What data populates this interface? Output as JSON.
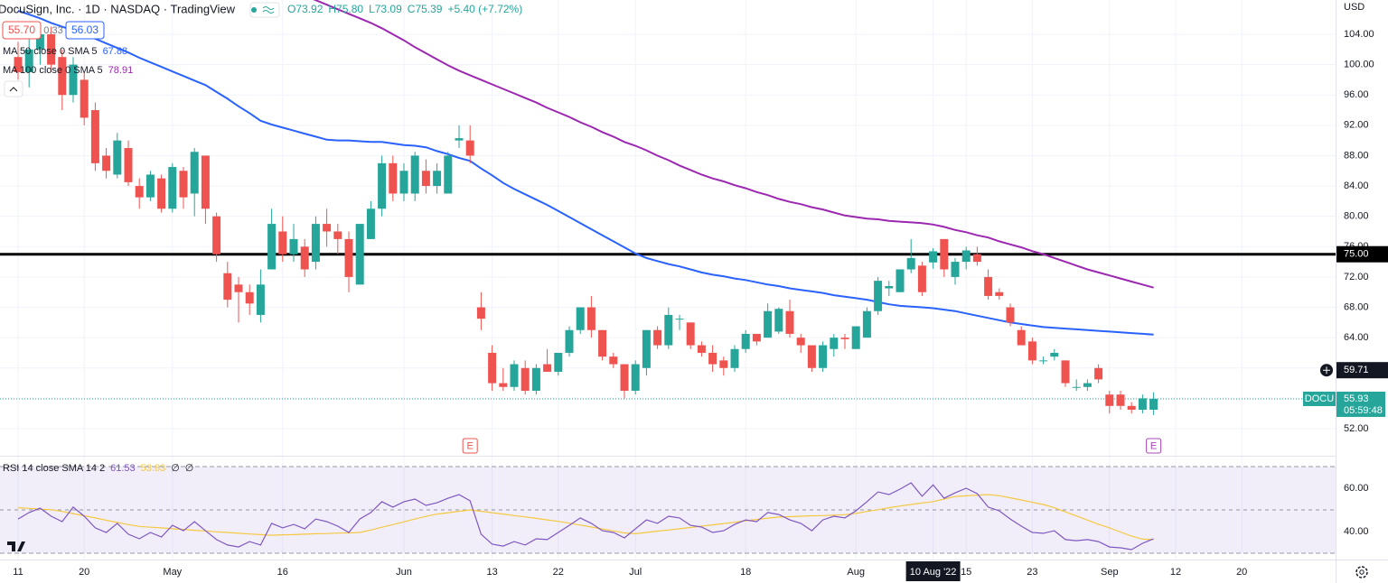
{
  "header": {
    "symbol": "DocuSign, Inc. · 1D · NASDAQ · TradingView",
    "ohlc": [
      "O73.92",
      "H75.80",
      "L73.09",
      "C75.39",
      "+5.40 (+7.72%)"
    ],
    "sell": "55.70",
    "spread": "0.33",
    "buy": "56.03"
  },
  "chart_data": {
    "type": "candlestick",
    "currency": "USD",
    "categories": [
      "11",
      null,
      null,
      null,
      null,
      null,
      "20",
      null,
      null,
      null,
      null,
      null,
      null,
      null,
      "May",
      null,
      null,
      null,
      null,
      null,
      null,
      null,
      null,
      null,
      "16",
      null,
      null,
      null,
      null,
      null,
      null,
      null,
      null,
      null,
      null,
      "Jun",
      null,
      null,
      null,
      null,
      null,
      null,
      null,
      "13",
      null,
      null,
      null,
      null,
      null,
      "22",
      null,
      null,
      null,
      null,
      null,
      null,
      "Jul",
      null,
      null,
      null,
      null,
      null,
      null,
      null,
      null,
      null,
      "18",
      null,
      null,
      null,
      null,
      null,
      null,
      null,
      null,
      null,
      "Aug",
      null,
      null,
      null,
      null,
      null,
      null,
      "10 Aug '22",
      null,
      null,
      "15",
      null,
      null,
      null,
      null,
      null,
      "23",
      null,
      null,
      null,
      null,
      null,
      null,
      "Sep",
      null,
      null,
      null,
      null,
      null,
      "12",
      null,
      null,
      null,
      null,
      null,
      "20"
    ],
    "open": [
      101,
      99,
      102,
      104,
      101,
      96,
      98,
      94,
      88,
      85.5,
      89,
      84,
      82.5,
      85,
      81,
      86,
      83,
      88,
      80,
      72.5,
      71,
      70,
      67,
      73,
      78,
      75,
      76,
      74,
      79,
      78,
      77,
      71,
      77,
      81,
      87,
      83,
      83,
      86,
      84,
      83,
      90,
      90,
      68,
      62,
      58,
      57.5,
      60,
      57,
      60.5,
      59.5,
      62,
      65,
      68,
      65,
      61.5,
      60.5,
      57,
      60,
      65,
      63,
      66.5,
      66,
      63,
      62,
      61,
      60,
      62.5,
      64.5,
      64,
      64.8,
      67.5,
      64,
      63,
      60,
      62.5,
      64,
      62.5,
      64,
      67.5,
      70.5,
      70,
      73,
      73.5,
      73.92,
      77,
      72,
      74,
      75,
      72,
      70,
      68,
      65,
      63.5,
      61,
      61.5,
      61,
      57.5,
      57.5,
      60,
      56.5,
      56.5,
      55,
      54.5,
      54.5,
      null,
      null,
      null,
      null,
      null,
      null,
      null,
      null
    ],
    "high": [
      103,
      104,
      105,
      105,
      102,
      101,
      99,
      95,
      89,
      91,
      90,
      85,
      86,
      85.5,
      87,
      86.5,
      89,
      88,
      80.5,
      74,
      72,
      71,
      73,
      81,
      80,
      79,
      77,
      80,
      81,
      79,
      78,
      79,
      82,
      88,
      88,
      87,
      88.5,
      87.5,
      87,
      88.5,
      92,
      92,
      70,
      63,
      60,
      61,
      61,
      60.5,
      62.5,
      62,
      65.5,
      68,
      69.5,
      65,
      62,
      60.5,
      61,
      65,
      65.5,
      68,
      67,
      66,
      63.5,
      63,
      61.5,
      63,
      65,
      64.5,
      68.5,
      68,
      69,
      64.5,
      63,
      63.5,
      64.5,
      64.5,
      65.5,
      68,
      72,
      71.5,
      73,
      77,
      74,
      75.8,
      77,
      74.5,
      76,
      76,
      73,
      70.5,
      68.5,
      65.5,
      64,
      61.5,
      62.5,
      61,
      58.5,
      58.5,
      60.5,
      57,
      57,
      55.5,
      56.5,
      56.8,
      null,
      null,
      null,
      null,
      null,
      null,
      null,
      null
    ],
    "low": [
      98,
      97,
      100,
      99,
      94,
      95,
      92,
      86,
      85,
      85,
      84,
      81,
      82,
      80.5,
      80.5,
      81,
      80,
      79,
      74,
      68,
      66,
      67,
      66,
      73,
      74,
      74,
      72,
      73,
      76,
      75,
      70,
      71,
      77,
      80,
      82,
      82,
      82,
      83,
      83,
      83,
      89,
      87,
      65,
      57,
      57,
      57,
      56.5,
      56.5,
      59.5,
      59,
      61.5,
      64.5,
      64,
      61,
      60,
      56,
      56.5,
      59,
      62.5,
      62.5,
      65,
      62.5,
      61.5,
      59.5,
      59,
      59.5,
      62,
      63,
      64,
      64.5,
      64,
      62,
      59.5,
      59.5,
      61.5,
      62.5,
      62.5,
      64,
      67,
      69.5,
      70,
      72.5,
      69.5,
      73.09,
      72,
      71,
      73,
      73.5,
      69,
      69,
      65.5,
      63,
      60.5,
      60.5,
      61,
      57.5,
      57,
      57,
      58,
      54,
      54.5,
      54,
      54,
      53.8,
      null,
      null,
      null,
      null,
      null,
      null,
      null,
      null
    ],
    "close": [
      99,
      102,
      104,
      100,
      96,
      100,
      93,
      87,
      86,
      90,
      84.5,
      82.5,
      85.5,
      81,
      86.5,
      82.5,
      88.5,
      81,
      75,
      69,
      70,
      68.5,
      71,
      79,
      75,
      77,
      73,
      79,
      78,
      77,
      72,
      79,
      81,
      87,
      83,
      86,
      88,
      84,
      86,
      88,
      90.3,
      88,
      66.5,
      58,
      57.5,
      60.5,
      57,
      60,
      59.5,
      62,
      65,
      68,
      65,
      61.5,
      60.5,
      57,
      60.5,
      65,
      63,
      67,
      66.5,
      63,
      62,
      60.5,
      60,
      62.5,
      64.5,
      63.5,
      67.5,
      67.8,
      64.5,
      63,
      60,
      63,
      64,
      63.8,
      65.5,
      67.5,
      71.5,
      70.8,
      73,
      74.5,
      70,
      75.39,
      73,
      74,
      75.5,
      74,
      69.5,
      69.5,
      66,
      63,
      61,
      61,
      62,
      58,
      57.5,
      58,
      58.5,
      55,
      55,
      54.5,
      56,
      55.93,
      null,
      null,
      null,
      null,
      null,
      null,
      null,
      null
    ],
    "up_color": "#26a69a",
    "down_color": "#ef5350",
    "ylim": [
      48.43,
      108.52
    ],
    "yticks": [
      {
        "value": 52,
        "label": "52.00"
      },
      {
        "value": 56,
        "label": "56.00"
      },
      {
        "value": 60,
        "label": "60.00"
      },
      {
        "value": 64,
        "label": "64.00"
      },
      {
        "value": 68,
        "label": "68.00"
      },
      {
        "value": 72,
        "label": "72.00"
      },
      {
        "value": 76,
        "label": "76.00"
      },
      {
        "value": 80,
        "label": "80.00"
      },
      {
        "value": 84,
        "label": "84.00"
      },
      {
        "value": 88,
        "label": "88.00"
      },
      {
        "value": 92,
        "label": "92.00"
      },
      {
        "value": 96,
        "label": "96.00"
      },
      {
        "value": 100,
        "label": "100.00"
      },
      {
        "value": 104,
        "label": "104.00"
      }
    ],
    "grid": true,
    "overlays": [
      {
        "name": "MA 50 close 0 SMA 5",
        "value": 67.88,
        "color": "#2962ff",
        "values": [
          107.1,
          106.6,
          106.1,
          105.5,
          105.0,
          104.5,
          104.0,
          103.4,
          102.8,
          102.2,
          101.6,
          100.9,
          100.3,
          99.7,
          99.1,
          98.5,
          97.9,
          97.3,
          96.4,
          95.5,
          94.5,
          93.6,
          92.6,
          92.1,
          91.7,
          91.3,
          90.9,
          90.5,
          90.1,
          90.0,
          90.0,
          89.9,
          89.8,
          89.8,
          89.6,
          89.4,
          89.3,
          89.1,
          88.6,
          88.2,
          87.7,
          87.3,
          86.3,
          85.4,
          84.4,
          83.6,
          82.9,
          82.2,
          81.5,
          80.7,
          79.9,
          79.1,
          78.3,
          77.5,
          76.7,
          75.9,
          75.1,
          74.5,
          74.1,
          73.7,
          73.4,
          73.0,
          72.6,
          72.3,
          72.1,
          71.8,
          71.6,
          71.3,
          71.0,
          70.8,
          70.5,
          70.3,
          70.1,
          69.9,
          69.6,
          69.4,
          69.2,
          69.0,
          68.7,
          68.4,
          68.2,
          68.1,
          68.0,
          67.88,
          67.7,
          67.5,
          67.2,
          66.9,
          66.6,
          66.3,
          66.0,
          65.8,
          65.6,
          65.4,
          65.3,
          65.2,
          65.1,
          65.0,
          64.9,
          64.8,
          64.7,
          64.6,
          64.5,
          64.4,
          null,
          null,
          null,
          null,
          null,
          null,
          null,
          null
        ]
      },
      {
        "name": "MA 100 close 0 SMA 5",
        "value": 78.91,
        "color": "#9c27b0",
        "values": [
          null,
          null,
          null,
          null,
          null,
          null,
          null,
          null,
          null,
          null,
          null,
          null,
          null,
          null,
          null,
          null,
          null,
          null,
          null,
          null,
          null,
          null,
          null,
          null,
          null,
          109.7,
          109.1,
          108.5,
          107.9,
          107.3,
          106.7,
          106.1,
          105.5,
          104.8,
          104.0,
          103.2,
          102.3,
          101.5,
          100.7,
          99.9,
          99.2,
          98.6,
          98.0,
          97.4,
          96.8,
          96.2,
          95.6,
          95.0,
          94.3,
          93.7,
          93.1,
          92.4,
          91.8,
          91.1,
          90.5,
          89.8,
          89.3,
          88.7,
          88.0,
          87.4,
          86.7,
          86.1,
          85.5,
          85.0,
          84.6,
          84.1,
          83.7,
          83.2,
          82.8,
          82.3,
          81.9,
          81.6,
          81.2,
          80.9,
          80.5,
          80.1,
          79.9,
          79.7,
          79.6,
          79.4,
          79.3,
          79.2,
          79.1,
          78.91,
          78.6,
          78.2,
          77.9,
          77.5,
          77.2,
          76.7,
          76.3,
          75.9,
          75.4,
          75.0,
          74.5,
          74.0,
          73.5,
          73.0,
          72.6,
          72.2,
          71.8,
          71.4,
          71.0,
          70.6,
          null,
          null,
          null,
          null,
          null,
          null,
          null,
          null
        ]
      }
    ],
    "hline": {
      "value": 75,
      "label": "75.00",
      "color": "#000000"
    },
    "crosshair_price": 59.71,
    "last": {
      "symbol": "DOCU",
      "countdown": "05:59:48",
      "color": "#26a69a"
    },
    "events": [
      {
        "label": "E",
        "color": "#ef5350"
      },
      {
        "label": "E",
        "color": "#ab47bc"
      }
    ],
    "rsi": {
      "type": "line",
      "name": "RSI 14 close SMA 14 2",
      "value": 61.53,
      "sma_value": 53.83,
      "empty": [
        "∅",
        "∅"
      ],
      "color": "#7e57c2",
      "sma_color": "#f5c842",
      "values": [
        45.8,
        48.8,
        50.8,
        47.1,
        44.6,
        51.3,
        47.1,
        41.7,
        39.6,
        43.8,
        38.8,
        36.7,
        39.6,
        37.5,
        42.9,
        40.4,
        44.6,
        40.4,
        36.3,
        33.8,
        32.9,
        35.4,
        33.8,
        43.8,
        41.7,
        43.3,
        41.3,
        45.8,
        44.6,
        42.5,
        39.6,
        45.8,
        48.8,
        53.8,
        51.3,
        53.8,
        55.0,
        52.1,
        53.3,
        55.4,
        57.1,
        54.2,
        38.8,
        34.2,
        33.3,
        35.4,
        33.8,
        36.7,
        36.3,
        39.6,
        42.9,
        46.3,
        43.8,
        40.4,
        39.6,
        37.1,
        41.3,
        45.4,
        43.8,
        47.1,
        46.3,
        42.9,
        42.1,
        39.6,
        40.4,
        43.3,
        45.4,
        44.6,
        48.8,
        47.9,
        45.4,
        43.8,
        40.4,
        45.4,
        47.1,
        46.3,
        49.6,
        53.8,
        58.3,
        57.1,
        59.6,
        62.5,
        56.3,
        61.53,
        55.4,
        57.9,
        60.0,
        57.5,
        51.3,
        49.6,
        45.8,
        42.5,
        39.6,
        39.2,
        40.4,
        36.3,
        35.8,
        36.3,
        35.4,
        32.9,
        32.5,
        31.7,
        34.6,
        36.7,
        null,
        null,
        null,
        null,
        null,
        null,
        null,
        null
      ],
      "sma": [
        51.0,
        50.7,
        50.4,
        50.1,
        49.3,
        48.3,
        47.3,
        46.3,
        45.2,
        44.2,
        43.2,
        42.4,
        42.0,
        41.7,
        41.3,
        41.0,
        40.6,
        40.3,
        39.9,
        39.6,
        39.2,
        38.9,
        38.6,
        38.3,
        38.5,
        38.6,
        38.8,
        39.0,
        39.1,
        39.3,
        39.4,
        39.6,
        40.7,
        42.0,
        43.2,
        44.5,
        45.8,
        47.0,
        48.1,
        48.7,
        49.4,
        50.0,
        49.4,
        48.7,
        48.1,
        47.4,
        46.8,
        46.1,
        45.4,
        44.7,
        43.9,
        43.0,
        42.1,
        41.2,
        40.3,
        39.4,
        39.0,
        39.6,
        40.2,
        40.7,
        41.3,
        41.9,
        42.5,
        43.1,
        43.7,
        44.3,
        45.0,
        45.6,
        46.2,
        46.7,
        46.9,
        47.1,
        47.3,
        47.4,
        47.6,
        47.8,
        48.4,
        49.3,
        50.1,
        51.0,
        51.8,
        52.5,
        53.2,
        53.83,
        55.0,
        56.2,
        56.5,
        56.8,
        57.1,
        56.6,
        55.6,
        54.6,
        53.5,
        52.5,
        51.0,
        49.1,
        47.2,
        45.3,
        43.4,
        41.7,
        39.8,
        37.9,
        36.5,
        36.3,
        null,
        null,
        null,
        null,
        null,
        null,
        null,
        null
      ],
      "ylim": [
        27.1,
        75
      ],
      "yticks": [
        {
          "value": 40,
          "label": "40.00"
        },
        {
          "value": 60,
          "label": "60.00"
        }
      ],
      "bands": [
        70,
        50,
        30
      ]
    }
  }
}
